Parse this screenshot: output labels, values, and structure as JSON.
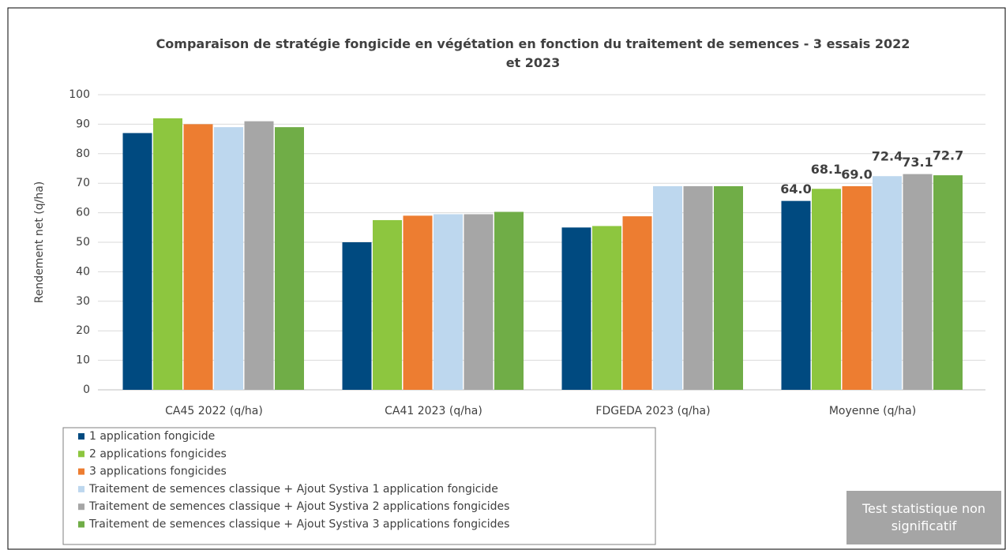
{
  "chart_data": {
    "type": "bar",
    "title": "Comparaison de stratégie fongicide en végétation en fonction du traitement de semences - 3 essais 2022 et 2023",
    "y_label": "Rendement net (q/ha)",
    "categories": [
      "CA45 2022 (q/ha)",
      "CA41 2023 (q/ha)",
      "FDGEDA 2023 (q/ha)",
      "Moyenne (q/ha)"
    ],
    "series": [
      {
        "name": "1 application fongicide",
        "color": "#004a80",
        "values": [
          87,
          50,
          55,
          64.0
        ],
        "value_labels": [
          null,
          null,
          null,
          "64.0"
        ]
      },
      {
        "name": "2 applications fongicides",
        "color": "#8dc63f",
        "values": [
          92,
          57.5,
          55.5,
          68.1
        ],
        "value_labels": [
          null,
          null,
          null,
          "68.1"
        ]
      },
      {
        "name": "3 applications fongicides",
        "color": "#ed7d31",
        "values": [
          90,
          59,
          58.8,
          69.0
        ],
        "value_labels": [
          null,
          null,
          null,
          "69.0"
        ]
      },
      {
        "name": "Traitement de semences classique + Ajout Systiva 1 application fongicide",
        "color": "#bdd7ee",
        "values": [
          89,
          59.5,
          69,
          72.4
        ],
        "value_labels": [
          null,
          null,
          null,
          "72.4"
        ]
      },
      {
        "name": "Traitement de semences classique + Ajout Systiva 2 applications fongicides",
        "color": "#a6a6a6",
        "values": [
          91,
          59.5,
          69,
          73.1
        ],
        "value_labels": [
          null,
          null,
          null,
          "73.1"
        ]
      },
      {
        "name": "Traitement de semences classique + Ajout Systiva 3 applications fongicides",
        "color": "#70ad47",
        "values": [
          89,
          60.3,
          69,
          72.7
        ],
        "value_labels": [
          null,
          null,
          null,
          "72.7"
        ]
      }
    ],
    "ylim": [
      0,
      100
    ],
    "yticks": [
      0,
      10,
      20,
      30,
      40,
      50,
      60,
      70,
      80,
      90,
      100
    ],
    "grid": true,
    "legend": "bottom-left",
    "annotation": "Test statistique non significatif"
  }
}
